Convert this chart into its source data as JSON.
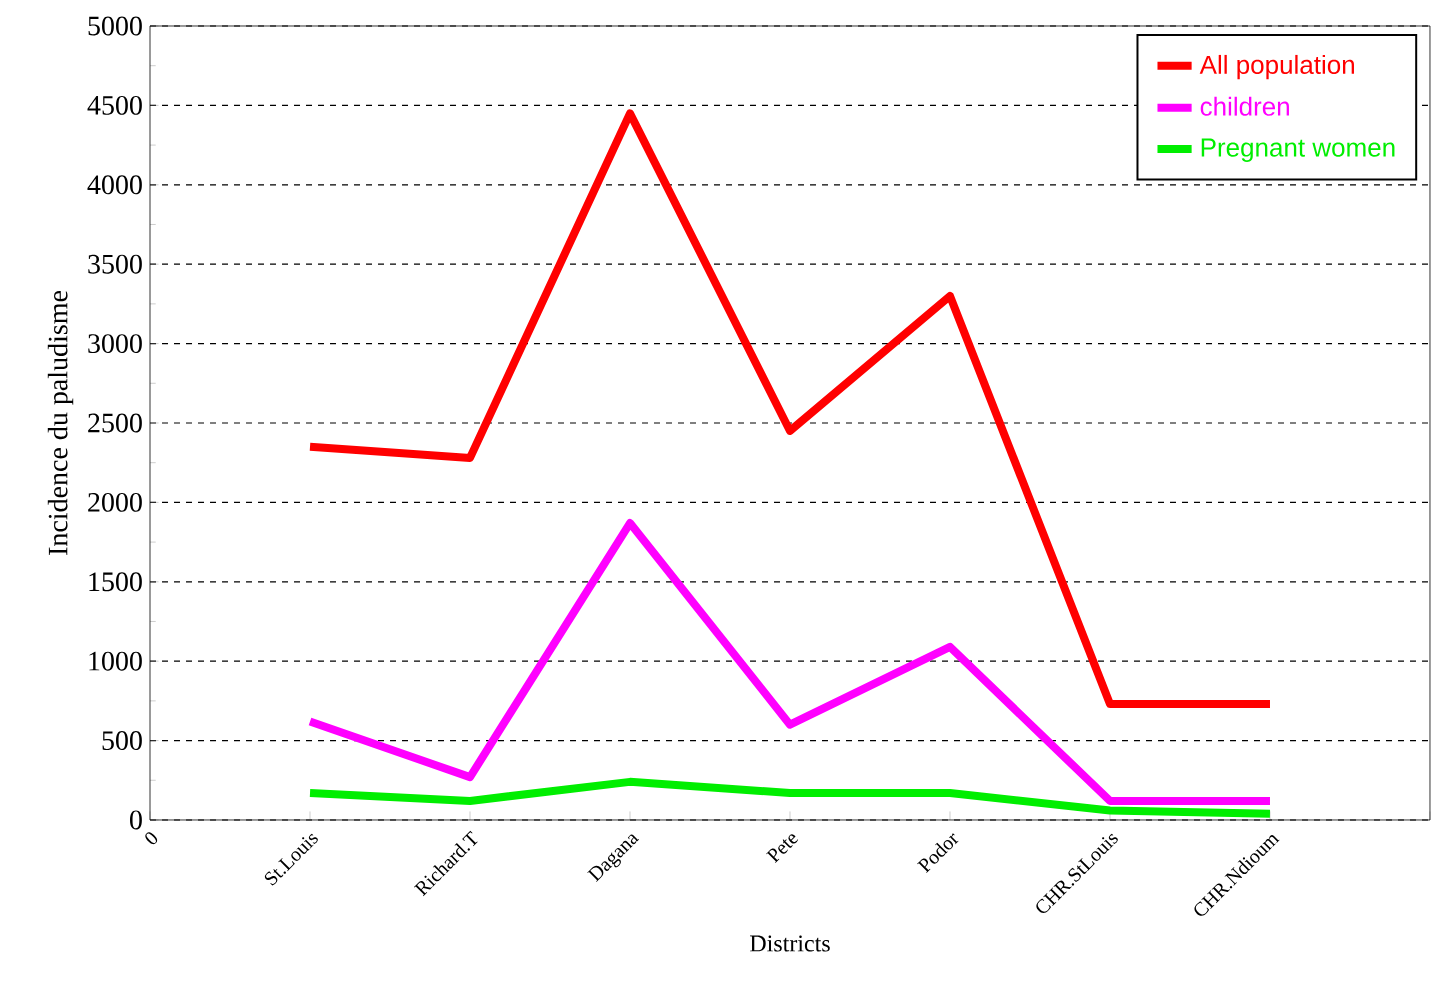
{
  "chart_data": {
    "type": "line",
    "xlabel": "Districts",
    "ylabel": "Incidence du paludisme",
    "categories": [
      "0",
      "St.Louis",
      "Richard.T",
      "Dagana",
      "Pete",
      "Podor",
      "CHR.StLouis",
      "CHR.Ndioum",
      null
    ],
    "ylim": [
      0,
      5000
    ],
    "yticks": [
      0,
      500,
      1000,
      1500,
      2000,
      2500,
      3000,
      3500,
      4000,
      4500,
      5000
    ],
    "grid": "y",
    "legend": "top right",
    "marker": "none",
    "line_style": "solid",
    "series": [
      {
        "name": "All population",
        "color": "#ff0000",
        "values": [
          null,
          2350,
          2280,
          4450,
          2450,
          3300,
          730,
          730,
          null
        ]
      },
      {
        "name": "children",
        "color": "#ff00ff",
        "values": [
          null,
          620,
          270,
          1870,
          600,
          1090,
          120,
          120,
          null
        ]
      },
      {
        "name": "Pregnant women",
        "color": "#00ee00",
        "values": [
          null,
          170,
          120,
          240,
          170,
          170,
          60,
          40,
          null
        ]
      }
    ]
  }
}
